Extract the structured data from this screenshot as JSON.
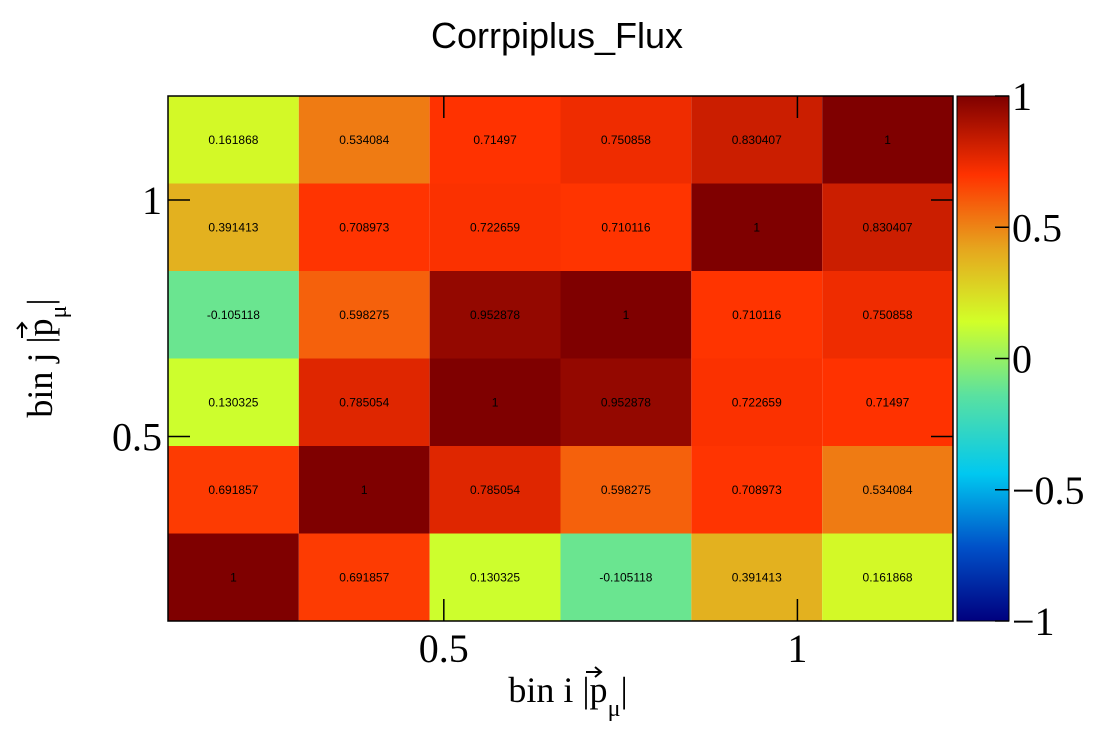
{
  "chart_data": {
    "type": "heatmap",
    "title": "Corrpiplus_Flux",
    "xlabel": {
      "main": "bin i |p",
      "sub": "μ",
      "end": "|"
    },
    "ylabel": {
      "main": "bin j |p",
      "sub": "μ",
      "end": "|"
    },
    "x_ticks": [
      {
        "label": "0.5",
        "value": 0.5
      },
      {
        "label": "1",
        "value": 1.0
      }
    ],
    "y_ticks": [
      {
        "label": "0.5",
        "value": 0.5
      },
      {
        "label": "1",
        "value": 1.0
      }
    ],
    "xlim": [
      0.11,
      1.22
    ],
    "ylim": [
      0.11,
      1.22
    ],
    "x_bin_edges": [
      0.11,
      0.295,
      0.48,
      0.665,
      0.85,
      1.035,
      1.22
    ],
    "y_bin_edges": [
      0.11,
      0.295,
      0.48,
      0.665,
      0.85,
      1.035,
      1.22
    ],
    "colorbar": {
      "min": -1,
      "max": 1,
      "ticks": [
        {
          "label": "1",
          "value": 1
        },
        {
          "label": "0.5",
          "value": 0.5
        },
        {
          "label": "0",
          "value": 0
        },
        {
          "label": "−0.5",
          "value": -0.5
        },
        {
          "label": "−1",
          "value": -1
        }
      ]
    },
    "values": [
      [
        1,
        0.691857,
        0.130325,
        -0.105118,
        0.391413,
        0.161868
      ],
      [
        0.691857,
        1,
        0.785054,
        0.598275,
        0.708973,
        0.534084
      ],
      [
        0.130325,
        0.785054,
        1,
        0.952878,
        0.722659,
        0.71497
      ],
      [
        -0.105118,
        0.598275,
        0.952878,
        1,
        0.710116,
        0.750858
      ],
      [
        0.391413,
        0.708973,
        0.722659,
        0.710116,
        1,
        0.830407
      ],
      [
        0.161868,
        0.534084,
        0.71497,
        0.750858,
        0.830407,
        1
      ]
    ],
    "labels": [
      [
        "1",
        "0.691857",
        "0.130325",
        "-0.105118",
        "0.391413",
        "0.161868"
      ],
      [
        "0.691857",
        "1",
        "0.785054",
        "0.598275",
        "0.708973",
        "0.534084"
      ],
      [
        "0.130325",
        "0.785054",
        "1",
        "0.952878",
        "0.722659",
        "0.71497"
      ],
      [
        "-0.105118",
        "0.598275",
        "0.952878",
        "1",
        "0.710116",
        "0.750858"
      ],
      [
        "0.391413",
        "0.708973",
        "0.722659",
        "0.710116",
        "1",
        "0.830407"
      ],
      [
        "0.161868",
        "0.534084",
        "0.71497",
        "0.750858",
        "0.830407",
        "1"
      ]
    ],
    "palette": [
      "#00007f",
      "#0050c8",
      "#00c8f0",
      "#5ae1a0",
      "#d2ff28",
      "#e6a51e",
      "#ff3200",
      "#7f0000"
    ],
    "grid": false,
    "legend": "right colorbar"
  }
}
